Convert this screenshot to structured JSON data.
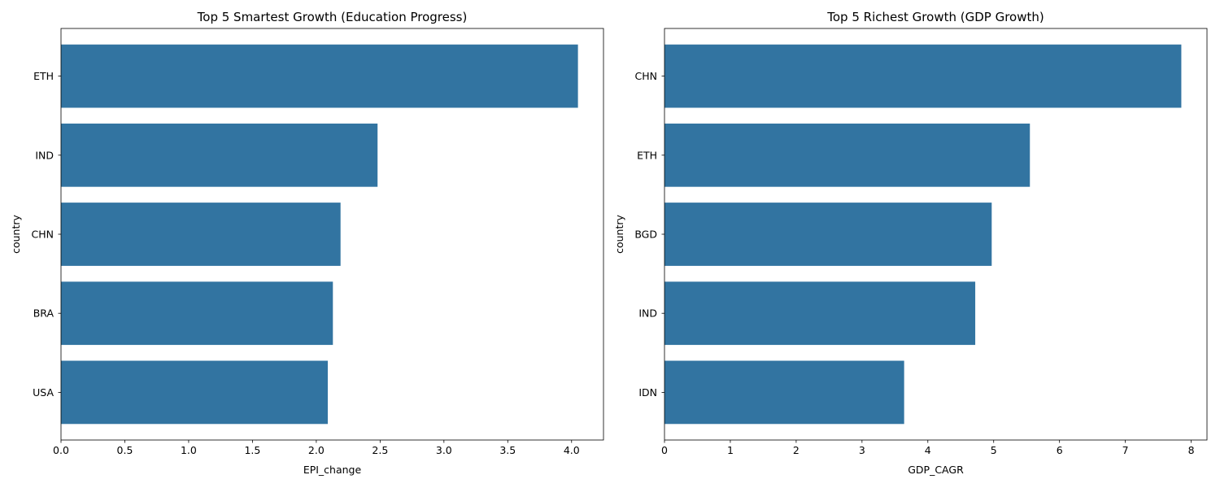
{
  "chart_data": [
    {
      "type": "bar",
      "orientation": "horizontal",
      "title": "Top 5 Smartest Growth (Education Progress)",
      "xlabel": "EPI_change",
      "ylabel": "country",
      "categories": [
        "ETH",
        "IND",
        "CHN",
        "BRA",
        "USA"
      ],
      "values": [
        4.05,
        2.48,
        2.19,
        2.13,
        2.09
      ],
      "xlim": [
        0,
        4.25
      ],
      "xticks": [
        0,
        0.5,
        1,
        1.5,
        2,
        2.5,
        3,
        3.5,
        4
      ],
      "xtick_labels": [
        "0.0",
        "0.5",
        "1.0",
        "1.5",
        "2.0",
        "2.5",
        "3.0",
        "3.5",
        "4.0"
      ],
      "bar_color": "#3274a1",
      "grid": false,
      "legend": "none"
    },
    {
      "type": "bar",
      "orientation": "horizontal",
      "title": "Top 5 Richest Growth (GDP Growth)",
      "xlabel": "GDP_CAGR",
      "ylabel": "country",
      "categories": [
        "CHN",
        "ETH",
        "BGD",
        "IND",
        "IDN"
      ],
      "values": [
        7.85,
        5.55,
        4.97,
        4.72,
        3.64
      ],
      "xlim": [
        0,
        8.24
      ],
      "xticks": [
        0,
        1,
        2,
        3,
        4,
        5,
        6,
        7,
        8
      ],
      "xtick_labels": [
        "0",
        "1",
        "2",
        "3",
        "4",
        "5",
        "6",
        "7",
        "8"
      ],
      "bar_color": "#3274a1",
      "grid": false,
      "legend": "none"
    }
  ]
}
